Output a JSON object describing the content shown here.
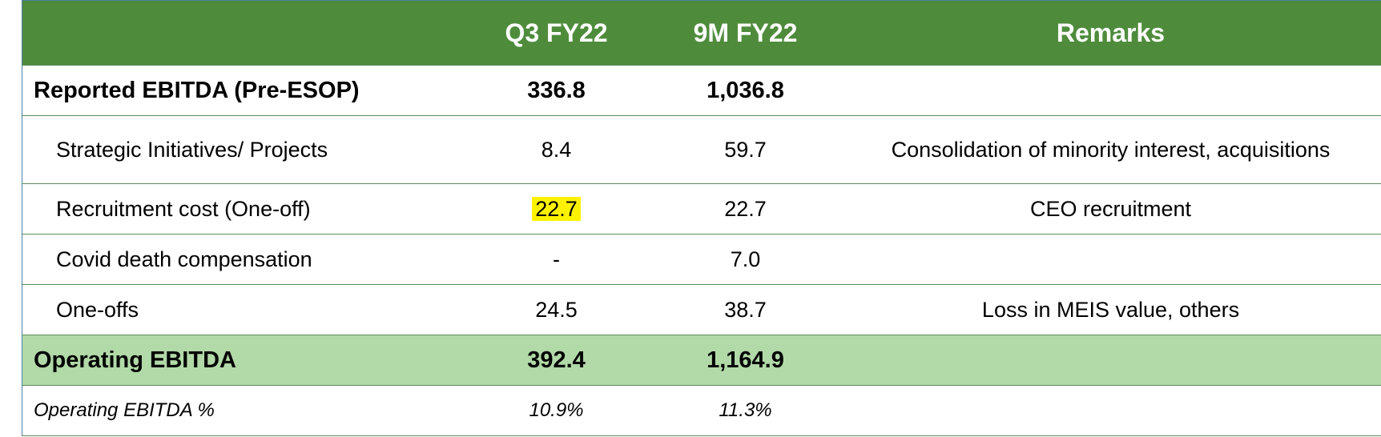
{
  "header": {
    "label": "",
    "col1": "Q3 FY22",
    "col2": "9M FY22",
    "col3": "Remarks"
  },
  "rows": [
    {
      "label": "Reported EBITDA (Pre-ESOP)",
      "q3": "336.8",
      "ninem": "1,036.8",
      "remark": ""
    },
    {
      "label": "Strategic Initiatives/ Projects",
      "q3": "8.4",
      "ninem": "59.7",
      "remark": "Consolidation of minority interest, acquisitions"
    },
    {
      "label": "Recruitment cost (One-off)",
      "q3": "22.7",
      "ninem": "22.7",
      "remark": "CEO recruitment"
    },
    {
      "label": "Covid death compensation",
      "q3": "-",
      "ninem": "7.0",
      "remark": ""
    },
    {
      "label": "One-offs",
      "q3": "24.5",
      "ninem": "38.7",
      "remark": "Loss in MEIS value, others"
    },
    {
      "label": "Operating EBITDA",
      "q3": "392.4",
      "ninem": "1,164.9",
      "remark": ""
    },
    {
      "label": "Operating EBITDA %",
      "q3": "10.9%",
      "ninem": "11.3%",
      "remark": ""
    }
  ],
  "colors": {
    "header_bg": "#4e8c3c",
    "highlight_row_bg": "#b2d9a8",
    "highlight_marker": "#fff200"
  }
}
